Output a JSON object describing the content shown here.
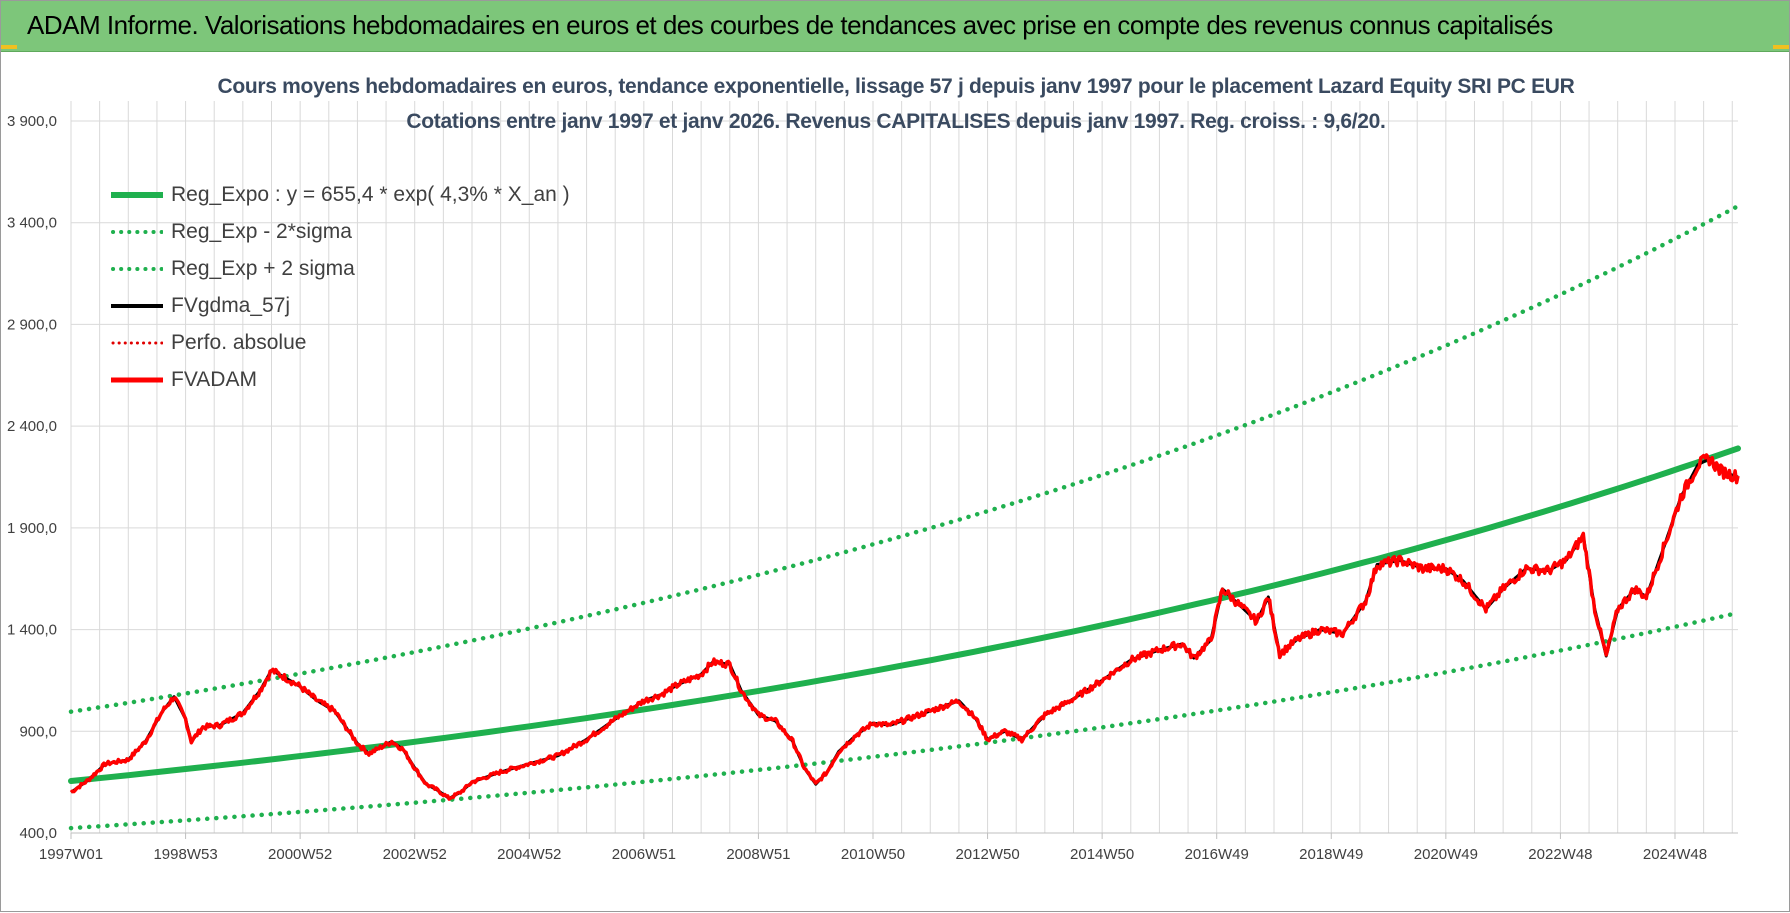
{
  "banner": {
    "title": "ADAM Informe. Valorisations hebdomadaires en euros et des courbes de tendances avec prise en compte des revenus connus capitalisés"
  },
  "colors": {
    "banner_bg": "#7dc67a",
    "reg_expo": "#1fb04e",
    "sigma": "#1fb04e",
    "fvgdma": "#000000",
    "perfo": "#e00000",
    "fvadam": "#ff0000",
    "grid": "#d9d9d9"
  },
  "chart_data": {
    "type": "line",
    "title_line1": "Cours moyens hebdomadaires en euros, tendance exponentielle, lissage 57 j depuis janv 1997  pour le placement Lazard Equity SRI PC EUR",
    "title_line2": "Cotations entre janv 1997 et janv 2026. Revenus CAPITALISES depuis janv 1997. Reg. croiss. : 9,6/20.",
    "xlabel": "",
    "ylabel": "",
    "xlim": [
      1997.0,
      2026.1
    ],
    "ylim": [
      400,
      3900
    ],
    "grid": true,
    "legend_position": "top-left",
    "y_ticks": [
      {
        "value": 400,
        "label": "400,0"
      },
      {
        "value": 900,
        "label": "900,0"
      },
      {
        "value": 1400,
        "label": "1 400,0"
      },
      {
        "value": 1900,
        "label": "1 900,0"
      },
      {
        "value": 2400,
        "label": "2 400,0"
      },
      {
        "value": 2900,
        "label": "2 900,0"
      },
      {
        "value": 3400,
        "label": "3 400,0"
      },
      {
        "value": 3900,
        "label": "3 900,0"
      }
    ],
    "x_ticks": [
      {
        "value": 1997.0,
        "label": "1997W01"
      },
      {
        "value": 1999.0,
        "label": "1998W53"
      },
      {
        "value": 2001.0,
        "label": "2000W52"
      },
      {
        "value": 2003.0,
        "label": "2002W52"
      },
      {
        "value": 2005.0,
        "label": "2004W52"
      },
      {
        "value": 2007.0,
        "label": "2006W51"
      },
      {
        "value": 2009.0,
        "label": "2008W51"
      },
      {
        "value": 2011.0,
        "label": "2010W50"
      },
      {
        "value": 2013.0,
        "label": "2012W50"
      },
      {
        "value": 2015.0,
        "label": "2014W50"
      },
      {
        "value": 2017.0,
        "label": "2016W49"
      },
      {
        "value": 2019.0,
        "label": "2018W49"
      },
      {
        "value": 2021.0,
        "label": "2020W49"
      },
      {
        "value": 2023.0,
        "label": "2022W48"
      },
      {
        "value": 2025.0,
        "label": "2024W48"
      }
    ],
    "trend": {
      "a": 655.4,
      "rate": 0.043,
      "sigma_low": 0.647,
      "sigma_high": 1.52
    },
    "series": [
      {
        "name": "Reg_Expo : y = 655,4 * exp( 4,3% *  X_an )",
        "style": "thick-solid"
      },
      {
        "name": "Reg_Exp - 2*sigma",
        "style": "dotted"
      },
      {
        "name": "Reg_Exp + 2 sigma",
        "style": "dotted"
      },
      {
        "name": "FVgdma_57j",
        "style": "solid-black"
      },
      {
        "name": "Perfo. absolue",
        "style": "dotted-red"
      },
      {
        "name": "FVADAM",
        "style": "solid-red"
      }
    ],
    "fvadam_points": [
      [
        1997.0,
        600
      ],
      [
        1997.3,
        660
      ],
      [
        1997.6,
        740
      ],
      [
        1998.0,
        760
      ],
      [
        1998.3,
        850
      ],
      [
        1998.6,
        1000
      ],
      [
        1998.8,
        1070
      ],
      [
        1999.0,
        960
      ],
      [
        1999.1,
        850
      ],
      [
        1999.3,
        920
      ],
      [
        1999.6,
        930
      ],
      [
        2000.0,
        990
      ],
      [
        2000.3,
        1100
      ],
      [
        2000.5,
        1200
      ],
      [
        2000.7,
        1170
      ],
      [
        2001.0,
        1120
      ],
      [
        2001.3,
        1050
      ],
      [
        2001.6,
        1000
      ],
      [
        2001.8,
        920
      ],
      [
        2002.0,
        840
      ],
      [
        2002.2,
        790
      ],
      [
        2002.6,
        850
      ],
      [
        2002.8,
        810
      ],
      [
        2003.0,
        720
      ],
      [
        2003.2,
        640
      ],
      [
        2003.4,
        610
      ],
      [
        2003.6,
        570
      ],
      [
        2003.8,
        600
      ],
      [
        2004.0,
        650
      ],
      [
        2004.5,
        700
      ],
      [
        2005.0,
        740
      ],
      [
        2005.5,
        780
      ],
      [
        2006.0,
        860
      ],
      [
        2006.5,
        960
      ],
      [
        2007.0,
        1050
      ],
      [
        2007.3,
        1080
      ],
      [
        2007.6,
        1130
      ],
      [
        2008.0,
        1180
      ],
      [
        2008.2,
        1240
      ],
      [
        2008.5,
        1230
      ],
      [
        2008.7,
        1100
      ],
      [
        2009.0,
        980
      ],
      [
        2009.3,
        950
      ],
      [
        2009.6,
        850
      ],
      [
        2009.8,
        720
      ],
      [
        2010.0,
        640
      ],
      [
        2010.2,
        700
      ],
      [
        2010.4,
        800
      ],
      [
        2010.7,
        880
      ],
      [
        2011.0,
        940
      ],
      [
        2011.3,
        930
      ],
      [
        2011.6,
        960
      ],
      [
        2012.0,
        1000
      ],
      [
        2012.5,
        1050
      ],
      [
        2012.8,
        960
      ],
      [
        2013.0,
        860
      ],
      [
        2013.3,
        900
      ],
      [
        2013.6,
        860
      ],
      [
        2014.0,
        980
      ],
      [
        2014.5,
        1060
      ],
      [
        2015.0,
        1150
      ],
      [
        2015.5,
        1250
      ],
      [
        2016.0,
        1300
      ],
      [
        2016.4,
        1330
      ],
      [
        2016.6,
        1260
      ],
      [
        2016.9,
        1350
      ],
      [
        2017.1,
        1600
      ],
      [
        2017.4,
        1520
      ],
      [
        2017.7,
        1440
      ],
      [
        2017.9,
        1560
      ],
      [
        2018.1,
        1280
      ],
      [
        2018.4,
        1350
      ],
      [
        2018.8,
        1400
      ],
      [
        2019.2,
        1380
      ],
      [
        2019.6,
        1540
      ],
      [
        2019.8,
        1720
      ],
      [
        2020.2,
        1740
      ],
      [
        2020.6,
        1700
      ],
      [
        2021.0,
        1700
      ],
      [
        2021.3,
        1640
      ],
      [
        2021.7,
        1500
      ],
      [
        2022.0,
        1600
      ],
      [
        2022.4,
        1700
      ],
      [
        2022.8,
        1690
      ],
      [
        2023.1,
        1740
      ],
      [
        2023.4,
        1860
      ],
      [
        2023.6,
        1500
      ],
      [
        2023.8,
        1270
      ],
      [
        2024.0,
        1500
      ],
      [
        2024.3,
        1600
      ],
      [
        2024.5,
        1560
      ],
      [
        2024.8,
        1800
      ],
      [
        2025.1,
        2050
      ],
      [
        2025.4,
        2210
      ],
      [
        2025.6,
        2240
      ],
      [
        2025.8,
        2180
      ],
      [
        2026.1,
        2150
      ]
    ]
  }
}
